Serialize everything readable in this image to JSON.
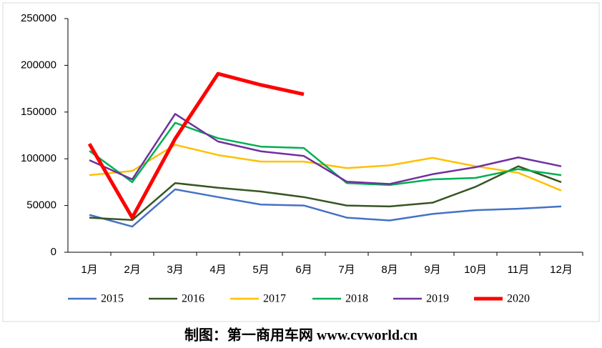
{
  "chart_data": {
    "type": "line",
    "caption": "制图：第一商用车网 www.cvworld.cn",
    "categories": [
      "1月",
      "2月",
      "3月",
      "4月",
      "5月",
      "6月",
      "7月",
      "8月",
      "9月",
      "10月",
      "11月",
      "12月"
    ],
    "series": [
      {
        "name": "2015",
        "color": "#4472c4",
        "width": 2.5,
        "values": [
          40000,
          27500,
          67300,
          59000,
          51000,
          50000,
          37000,
          34000,
          41000,
          45000,
          46500,
          49000
        ]
      },
      {
        "name": "2016",
        "color": "#375623",
        "width": 2.5,
        "values": [
          37000,
          34500,
          74000,
          69000,
          65000,
          59000,
          50000,
          49000,
          53000,
          70000,
          92000,
          75000
        ]
      },
      {
        "name": "2017",
        "color": "#ffc000",
        "width": 2.5,
        "values": [
          82500,
          87000,
          115000,
          104000,
          97000,
          97000,
          90000,
          93000,
          101000,
          92000,
          85000,
          66000
        ]
      },
      {
        "name": "2018",
        "color": "#00b050",
        "width": 2.5,
        "values": [
          108500,
          75000,
          138500,
          122000,
          113000,
          111500,
          74000,
          72000,
          78000,
          79500,
          89000,
          82500
        ]
      },
      {
        "name": "2019",
        "color": "#7030a0",
        "width": 2.5,
        "values": [
          98500,
          78000,
          148000,
          118500,
          108000,
          103000,
          75500,
          73000,
          83500,
          91000,
          101500,
          92000
        ]
      },
      {
        "name": "2020",
        "color": "#ff0000",
        "width": 5,
        "values": [
          116000,
          37000,
          121500,
          191000,
          179000,
          169000,
          null,
          null,
          null,
          null,
          null,
          null
        ]
      }
    ],
    "ylim": [
      0,
      250000
    ],
    "yticks": [
      0,
      50000,
      100000,
      150000,
      200000,
      250000
    ],
    "grid": false
  }
}
